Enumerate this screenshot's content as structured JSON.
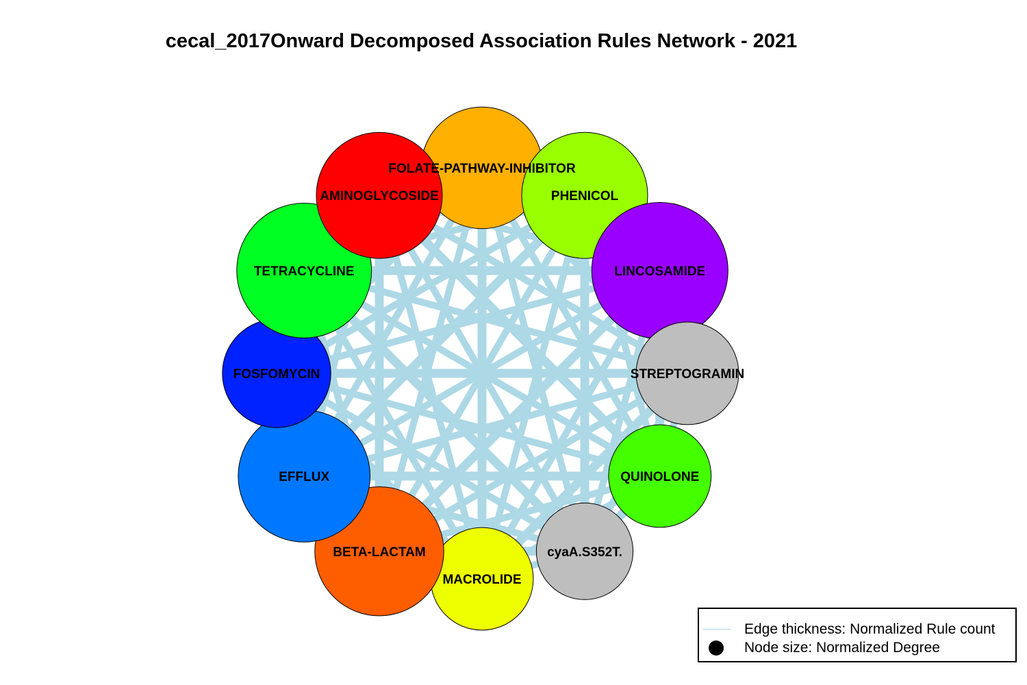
{
  "title": "cecal_2017Onward Decomposed Association Rules Network - 2021",
  "edge_color": "#add8e6",
  "nodes": [
    {
      "id": "folate-pathway-inhibitor",
      "label": "FOLATE-PATHWAY-INHIBITOR",
      "color": "#ffb000",
      "degree": 0.83
    },
    {
      "id": "phenicol",
      "label": "PHENICOL",
      "color": "#99ff00",
      "degree": 0.86
    },
    {
      "id": "lincosamide",
      "label": "LINCOSAMIDE",
      "color": "#9900ff",
      "degree": 0.93
    },
    {
      "id": "streptogramin",
      "label": "STREPTOGRAMIN",
      "color": "#bebebe",
      "degree": 0.7
    },
    {
      "id": "quinolone",
      "label": "QUINOLONE",
      "color": "#44ff00",
      "degree": 0.7
    },
    {
      "id": "cyaa",
      "label": "cyaA.S352T.",
      "color": "#bebebe",
      "degree": 0.66
    },
    {
      "id": "macrolide",
      "label": "MACROLIDE",
      "color": "#eeff00",
      "degree": 0.7
    },
    {
      "id": "beta-lactam",
      "label": "BETA-LACTAM",
      "color": "#ff5e00",
      "degree": 0.88
    },
    {
      "id": "efflux",
      "label": "EFFLUX",
      "color": "#0077ff",
      "degree": 0.9
    },
    {
      "id": "fosfomycin",
      "label": "FOSFOMYCIN",
      "color": "#0022ff",
      "degree": 0.74
    },
    {
      "id": "tetracycline",
      "label": "TETRACYCLINE",
      "color": "#00ff22",
      "degree": 0.92
    },
    {
      "id": "aminoglycoside",
      "label": "AMINOGLYCOSIDE",
      "color": "#ff0000",
      "degree": 0.86
    }
  ],
  "legend": {
    "edge_text": "Edge thickness: Normalized Rule count",
    "node_text": "Node size: Normalized Degree",
    "line_color": "#add8e6",
    "dot_color": "#000000"
  }
}
